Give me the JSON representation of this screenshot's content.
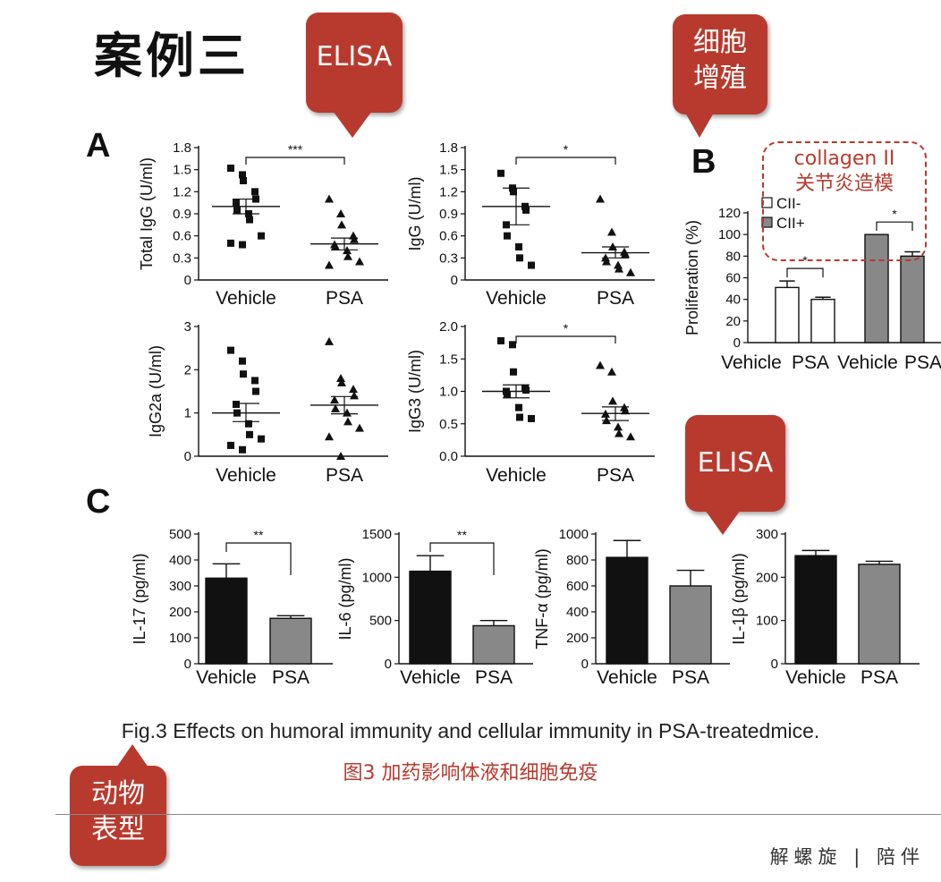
{
  "slide": {
    "title": "案例三",
    "panel_a": "A",
    "panel_b": "B",
    "panel_c": "C",
    "caption_en": "Fig.3 Effects on humoral immunity and cellular immunity in PSA-treatedmice.",
    "caption_zh": "图3 加药影响体液和细胞免疫",
    "footer": "解螺旋 | 陪伴",
    "collagen_label": "collagen II",
    "collagen_sub": "关节炎造模",
    "accent_color": "#b83a2e"
  },
  "bubbles": {
    "elisa_top": "ELISA",
    "prolif_line1": "细胞",
    "prolif_line2": "增殖",
    "elisa_c": "ELISA",
    "animal_line1": "动物",
    "animal_line2": "表型"
  },
  "chart_data": [
    {
      "id": "total-igg",
      "type": "scatter",
      "ylabel": "Total IgG (U/ml)",
      "categories": [
        "Vehicle",
        "PSA"
      ],
      "yticks": [
        "0",
        "0.3",
        "0.6",
        "0.9",
        "1.2",
        "1.5",
        "1.8"
      ],
      "ylim": [
        0,
        1.8
      ],
      "series": [
        {
          "category": "Vehicle",
          "marker": "square",
          "values": [
            1.52,
            1.43,
            1.35,
            1.2,
            1.1,
            1.05,
            0.95,
            0.9,
            0.82,
            0.6,
            0.5,
            0.48
          ],
          "mean": 1.0,
          "sem_low": 0.9,
          "sem_high": 1.1
        },
        {
          "category": "PSA",
          "marker": "triangle",
          "values": [
            1.1,
            0.9,
            0.75,
            0.6,
            0.55,
            0.48,
            0.45,
            0.4,
            0.32,
            0.25,
            0.2
          ],
          "mean": 0.49,
          "sem_low": 0.41,
          "sem_high": 0.57
        }
      ],
      "significance": "***"
    },
    {
      "id": "igg",
      "type": "scatter",
      "ylabel": "IgG (U/ml)",
      "categories": [
        "Vehicle",
        "PSA"
      ],
      "yticks": [
        "0",
        "0.3",
        "0.6",
        "0.9",
        "1.2",
        "1.5",
        "1.8"
      ],
      "ylim": [
        0,
        1.8
      ],
      "series": [
        {
          "category": "Vehicle",
          "marker": "square",
          "values": [
            1.45,
            1.25,
            1.2,
            1.0,
            0.95,
            0.75,
            0.6,
            0.45,
            0.3,
            0.2
          ],
          "mean": 1.0,
          "sem_low": 0.75,
          "sem_high": 1.25
        },
        {
          "category": "PSA",
          "marker": "triangle",
          "values": [
            1.1,
            0.65,
            0.45,
            0.38,
            0.35,
            0.3,
            0.25,
            0.2,
            0.15,
            0.1
          ],
          "mean": 0.37,
          "sem_low": 0.3,
          "sem_high": 0.45
        },
        {
          "category": "",
          "marker": "none",
          "values": []
        }
      ],
      "significance": "*"
    },
    {
      "id": "igg2a",
      "type": "scatter",
      "ylabel": "IgG2a (U/ml)",
      "categories": [
        "Vehicle",
        "PSA"
      ],
      "yticks": [
        "0",
        "1",
        "2",
        "3"
      ],
      "ylim": [
        0,
        3
      ],
      "series": [
        {
          "category": "Vehicle",
          "marker": "square",
          "values": [
            2.45,
            2.2,
            1.9,
            1.75,
            1.5,
            1.2,
            1.0,
            0.75,
            0.5,
            0.4,
            0.25,
            0.15
          ],
          "mean": 1.0,
          "sem_low": 0.8,
          "sem_high": 1.22
        },
        {
          "category": "PSA",
          "marker": "triangle",
          "values": [
            2.65,
            1.8,
            1.7,
            1.55,
            1.4,
            1.3,
            1.1,
            1.0,
            0.8,
            0.65,
            0.45,
            0.0
          ],
          "mean": 1.18,
          "sem_low": 0.98,
          "sem_high": 1.38
        }
      ],
      "significance": ""
    },
    {
      "id": "igg3",
      "type": "scatter",
      "ylabel": "IgG3 (U/ml)",
      "categories": [
        "Vehicle",
        "PSA"
      ],
      "yticks": [
        "0.0",
        "0.5",
        "1.0",
        "1.5",
        "2.0"
      ],
      "ylim": [
        0,
        2.0
      ],
      "series": [
        {
          "category": "Vehicle",
          "marker": "square",
          "values": [
            1.78,
            1.72,
            1.3,
            1.05,
            1.02,
            1.0,
            0.95,
            0.75,
            0.6,
            0.58
          ],
          "mean": 1.0,
          "sem_low": 0.9,
          "sem_high": 1.1
        },
        {
          "category": "PSA",
          "marker": "triangle",
          "values": [
            1.4,
            1.3,
            0.85,
            0.75,
            0.7,
            0.65,
            0.55,
            0.45,
            0.35,
            0.3
          ],
          "mean": 0.66,
          "sem_low": 0.55,
          "sem_high": 0.76
        }
      ],
      "significance": "*"
    },
    {
      "id": "proliferation",
      "type": "bar",
      "ylabel": "Proliferation (%)",
      "categories": [
        "Vehicle",
        "PSA",
        "Vehicle",
        "PSA"
      ],
      "yticks": [
        "0",
        "20",
        "40",
        "60",
        "80",
        "100",
        "120"
      ],
      "ylim": [
        0,
        120
      ],
      "values": [
        51,
        40,
        100,
        80
      ],
      "errors": [
        6,
        2,
        0,
        4
      ],
      "colors": [
        "#ffffff",
        "#ffffff",
        "#888888",
        "#888888"
      ],
      "legend": [
        "CII-",
        "CII+"
      ],
      "significance": [
        "*",
        "*"
      ]
    },
    {
      "id": "il17",
      "type": "bar",
      "ylabel": "IL-17 (pg/ml)",
      "categories": [
        "Vehicle",
        "PSA"
      ],
      "yticks": [
        "0",
        "100",
        "200",
        "300",
        "400",
        "500"
      ],
      "ylim": [
        0,
        500
      ],
      "values": [
        330,
        175
      ],
      "errors": [
        55,
        10
      ],
      "colors": [
        "#111111",
        "#888888"
      ],
      "significance": "**"
    },
    {
      "id": "il6",
      "type": "bar",
      "ylabel": "IL-6 (pg/ml)",
      "categories": [
        "Vehicle",
        "PSA"
      ],
      "yticks": [
        "0",
        "500",
        "1000",
        "1500"
      ],
      "ylim": [
        0,
        1500
      ],
      "values": [
        1070,
        440
      ],
      "errors": [
        180,
        60
      ],
      "colors": [
        "#111111",
        "#888888"
      ],
      "significance": "**"
    },
    {
      "id": "tnfa",
      "type": "bar",
      "ylabel": "TNF-α (pg/ml)",
      "categories": [
        "Vehicle",
        "PSA"
      ],
      "yticks": [
        "0",
        "200",
        "400",
        "600",
        "800",
        "1000"
      ],
      "ylim": [
        0,
        1000
      ],
      "values": [
        820,
        600
      ],
      "errors": [
        130,
        120
      ],
      "colors": [
        "#111111",
        "#888888"
      ],
      "significance": ""
    },
    {
      "id": "il1b",
      "type": "bar",
      "ylabel": "IL-1β (pg/ml)",
      "categories": [
        "Vehicle",
        "PSA"
      ],
      "yticks": [
        "0",
        "100",
        "200",
        "300"
      ],
      "ylim": [
        0,
        300
      ],
      "values": [
        250,
        230
      ],
      "errors": [
        12,
        7
      ],
      "colors": [
        "#111111",
        "#888888"
      ],
      "significance": ""
    }
  ]
}
